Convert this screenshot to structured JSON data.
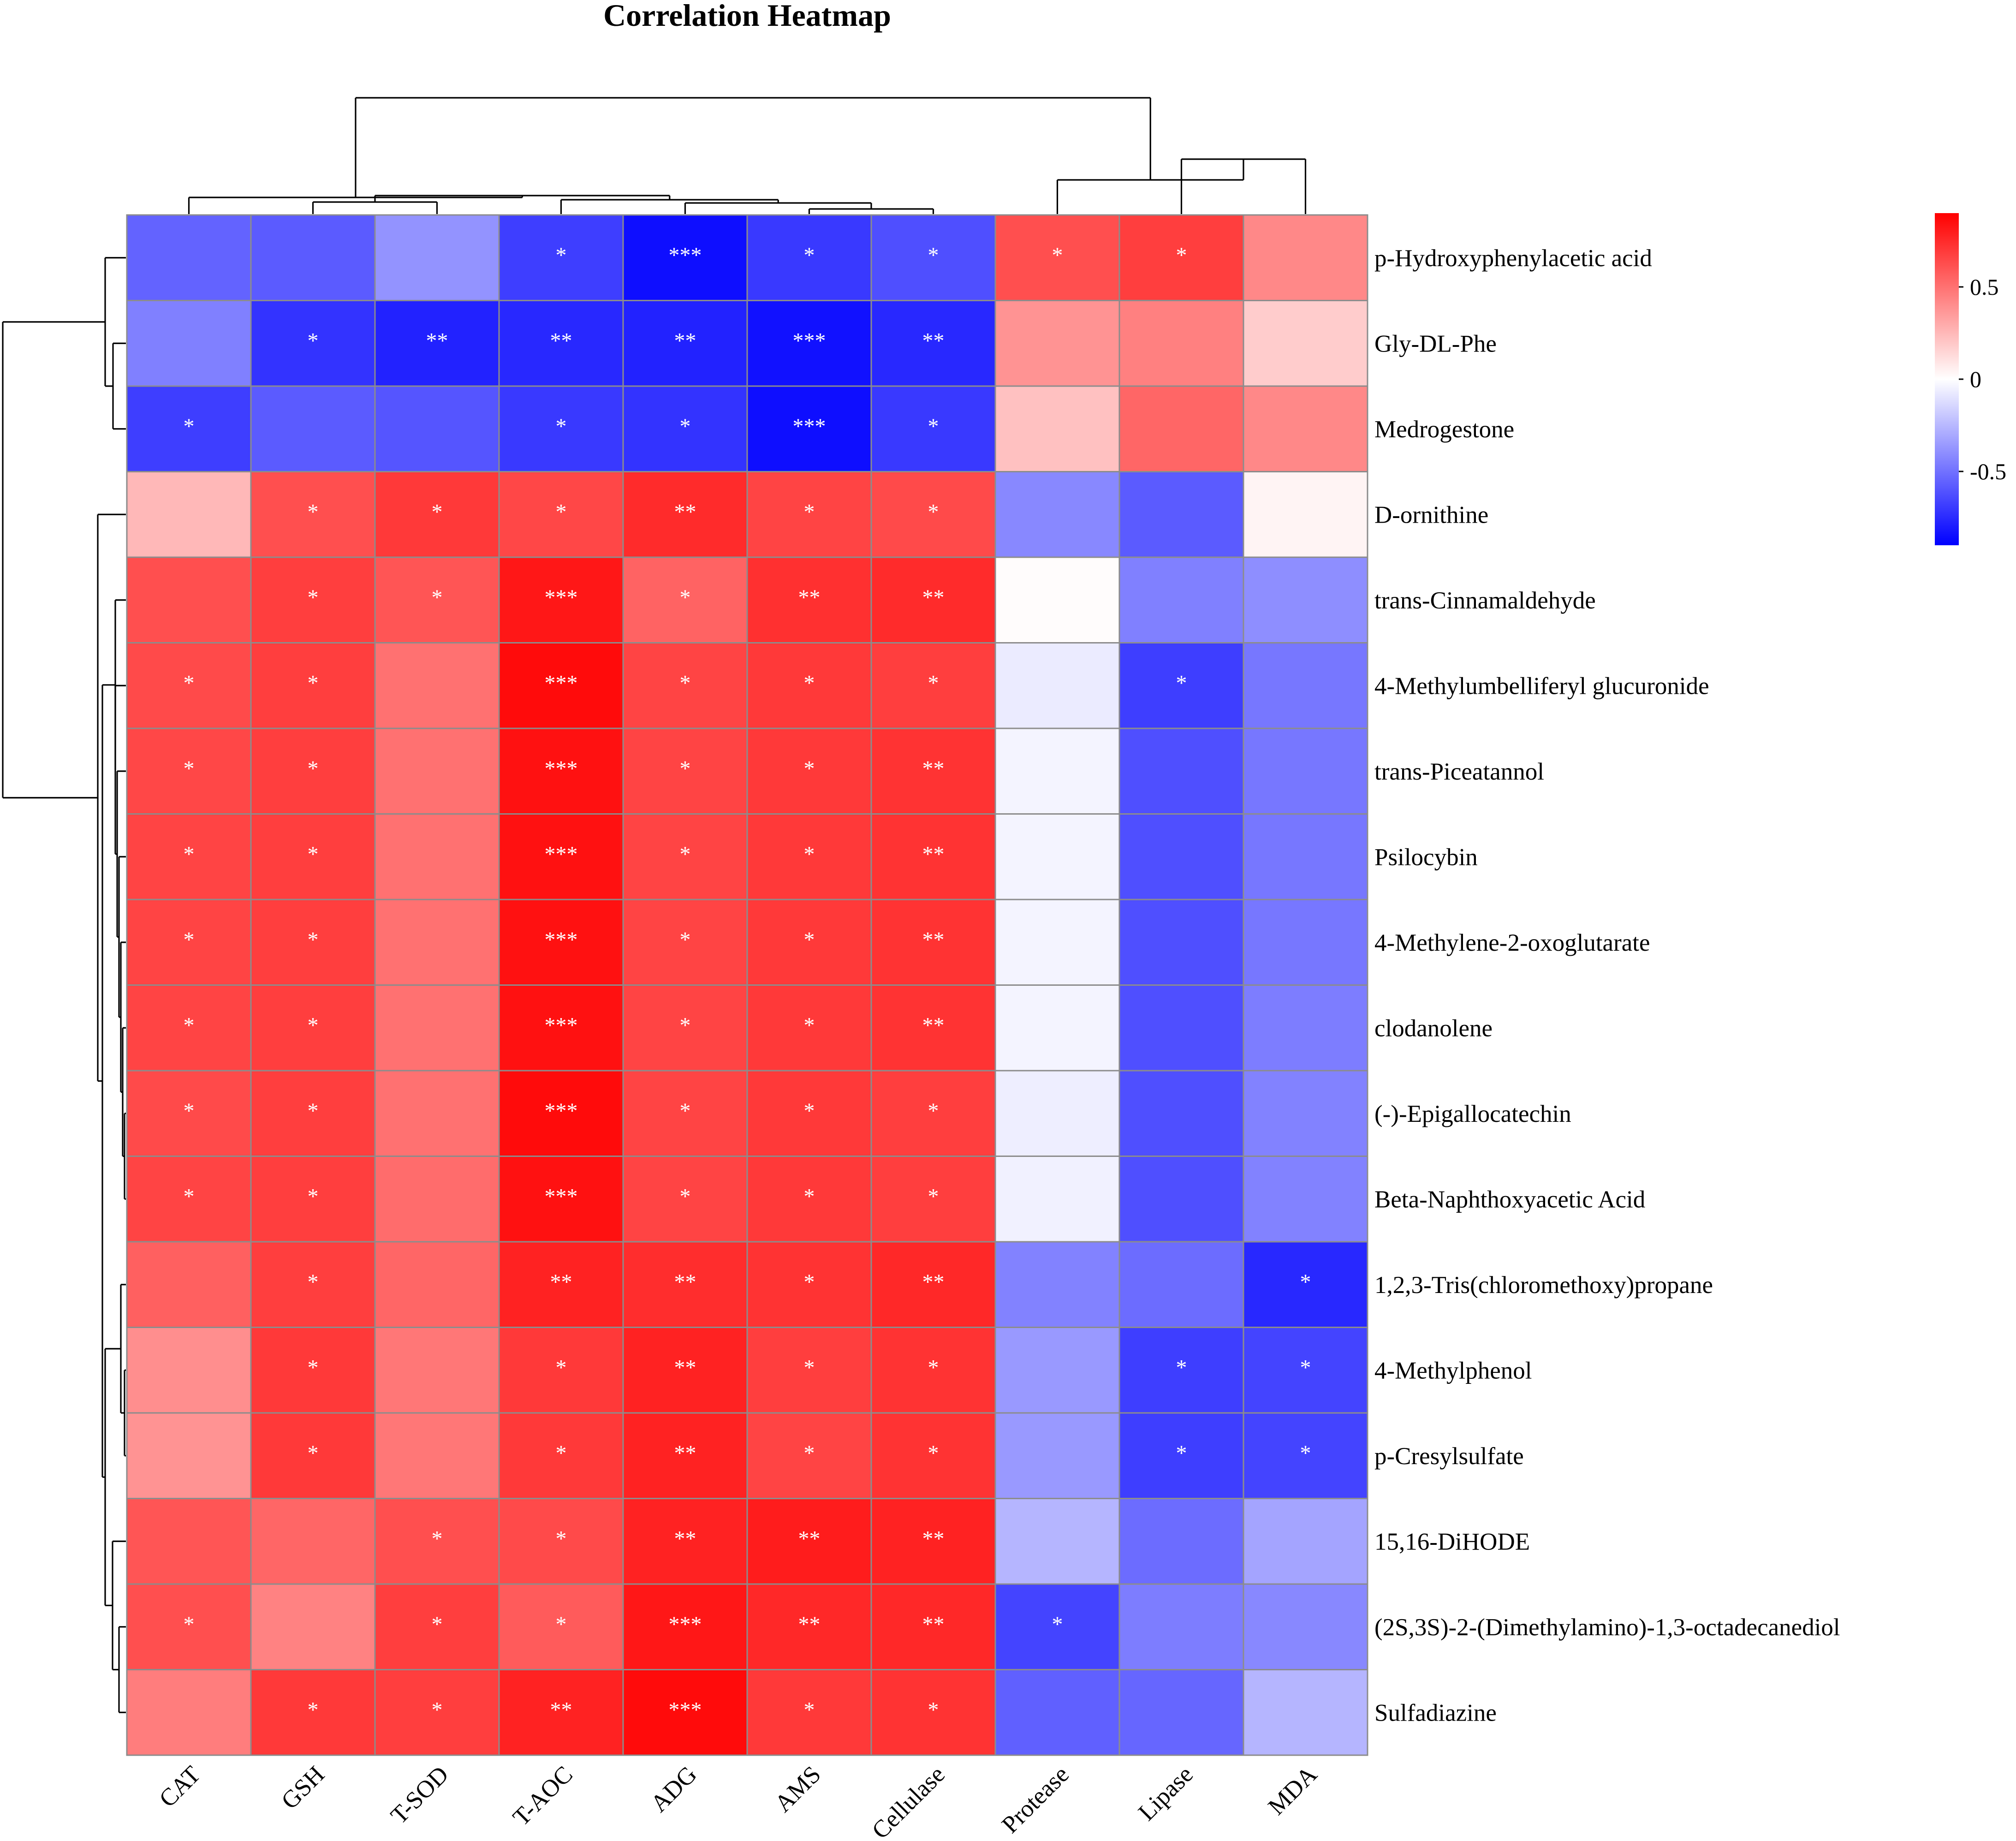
{
  "chart_data": {
    "type": "heatmap",
    "title": "Correlation Heatmap",
    "columns": [
      "CAT",
      "GSH",
      "T-SOD",
      "T-AOC",
      "ADG",
      "AMS",
      "Cellulase",
      "Protease",
      "Lipase",
      "MDA"
    ],
    "rows": [
      "p-Hydroxyphenylacetic acid",
      "Gly-DL-Phe",
      "Medrogestone",
      "D-ornithine",
      "trans-Cinnamaldehyde",
      "4-Methylumbelliferyl glucuronide",
      "trans-Piceatannol",
      "Psilocybin",
      "4-Methylene-2-oxoglutarate",
      "clodanolene",
      "(-)-Epigallocatechin",
      "Beta-Naphthoxyacetic Acid",
      "1,2,3-Tris(chloromethoxy)propane",
      "4-Methylphenol",
      "p-Cresylsulfate",
      "15,16-DiHODE",
      "(2S,3S)-2-(Dimethylamino)-1,3-octadecanediol",
      "Sulfadiazine"
    ],
    "values": [
      [
        -0.55,
        -0.58,
        -0.38,
        -0.68,
        -0.85,
        -0.7,
        -0.62,
        0.62,
        0.68,
        0.42
      ],
      [
        -0.45,
        -0.72,
        -0.78,
        -0.76,
        -0.78,
        -0.84,
        -0.76,
        0.38,
        0.45,
        0.18
      ],
      [
        -0.68,
        -0.58,
        -0.6,
        -0.7,
        -0.72,
        -0.85,
        -0.7,
        0.22,
        0.54,
        0.42
      ],
      [
        0.25,
        0.62,
        0.7,
        0.65,
        0.75,
        0.66,
        0.64,
        -0.42,
        -0.58,
        0.04
      ],
      [
        0.62,
        0.68,
        0.6,
        0.82,
        0.55,
        0.73,
        0.75,
        0.01,
        -0.45,
        -0.4
      ],
      [
        0.64,
        0.68,
        0.5,
        0.86,
        0.66,
        0.7,
        0.68,
        -0.07,
        -0.68,
        -0.48
      ],
      [
        0.65,
        0.68,
        0.5,
        0.84,
        0.66,
        0.7,
        0.72,
        -0.04,
        -0.62,
        -0.48
      ],
      [
        0.66,
        0.68,
        0.5,
        0.84,
        0.66,
        0.7,
        0.72,
        -0.04,
        -0.62,
        -0.48
      ],
      [
        0.66,
        0.68,
        0.5,
        0.84,
        0.66,
        0.7,
        0.72,
        -0.04,
        -0.62,
        -0.48
      ],
      [
        0.66,
        0.68,
        0.5,
        0.84,
        0.66,
        0.7,
        0.72,
        -0.04,
        -0.62,
        -0.46
      ],
      [
        0.64,
        0.68,
        0.5,
        0.86,
        0.66,
        0.7,
        0.68,
        -0.06,
        -0.62,
        -0.44
      ],
      [
        0.66,
        0.68,
        0.52,
        0.84,
        0.66,
        0.7,
        0.68,
        -0.05,
        -0.62,
        -0.44
      ],
      [
        0.56,
        0.68,
        0.54,
        0.78,
        0.74,
        0.72,
        0.76,
        -0.44,
        -0.52,
        -0.76
      ],
      [
        0.4,
        0.7,
        0.48,
        0.7,
        0.78,
        0.68,
        0.72,
        -0.36,
        -0.68,
        -0.66
      ],
      [
        0.38,
        0.7,
        0.48,
        0.7,
        0.78,
        0.66,
        0.72,
        -0.36,
        -0.68,
        -0.66
      ],
      [
        0.6,
        0.54,
        0.62,
        0.64,
        0.78,
        0.8,
        0.78,
        -0.26,
        -0.52,
        -0.32
      ],
      [
        0.62,
        0.44,
        0.68,
        0.58,
        0.82,
        0.76,
        0.76,
        -0.66,
        -0.46,
        -0.42
      ],
      [
        0.46,
        0.7,
        0.68,
        0.78,
        0.86,
        0.7,
        0.72,
        -0.56,
        -0.54,
        -0.26
      ]
    ],
    "significance": [
      [
        "",
        "",
        "",
        "*",
        "***",
        "*",
        "*",
        "*",
        "*",
        ""
      ],
      [
        "",
        "*",
        "**",
        "**",
        "**",
        "***",
        "**",
        "",
        "",
        ""
      ],
      [
        "*",
        "",
        "",
        "*",
        "*",
        "***",
        "*",
        "",
        "",
        ""
      ],
      [
        "",
        "*",
        "*",
        "*",
        "**",
        "*",
        "*",
        "",
        "",
        ""
      ],
      [
        "",
        "*",
        "*",
        "***",
        "*",
        "**",
        "**",
        "",
        "",
        ""
      ],
      [
        "*",
        "*",
        "",
        "***",
        "*",
        "*",
        "*",
        "",
        "*",
        ""
      ],
      [
        "*",
        "*",
        "",
        "***",
        "*",
        "*",
        "**",
        "",
        "",
        ""
      ],
      [
        "*",
        "*",
        "",
        "***",
        "*",
        "*",
        "**",
        "",
        "",
        ""
      ],
      [
        "*",
        "*",
        "",
        "***",
        "*",
        "*",
        "**",
        "",
        "",
        ""
      ],
      [
        "*",
        "*",
        "",
        "***",
        "*",
        "*",
        "**",
        "",
        "",
        ""
      ],
      [
        "*",
        "*",
        "",
        "***",
        "*",
        "*",
        "*",
        "",
        "",
        ""
      ],
      [
        "*",
        "*",
        "",
        "***",
        "*",
        "*",
        "*",
        "",
        "",
        ""
      ],
      [
        "",
        "*",
        "",
        "**",
        "**",
        "*",
        "**",
        "",
        "",
        "*"
      ],
      [
        "",
        "*",
        "",
        "*",
        "**",
        "*",
        "*",
        "",
        "*",
        "*"
      ],
      [
        "",
        "*",
        "",
        "*",
        "**",
        "*",
        "*",
        "",
        "*",
        "*"
      ],
      [
        "",
        "",
        "*",
        "*",
        "**",
        "**",
        "**",
        "",
        "",
        ""
      ],
      [
        "*",
        "",
        "*",
        "*",
        "***",
        "**",
        "**",
        "*",
        "",
        ""
      ],
      [
        "",
        "*",
        "*",
        "**",
        "***",
        "*",
        "*",
        "",
        "",
        ""
      ]
    ],
    "color_scale": {
      "low": "#0000ff",
      "mid": "#ffffff",
      "high": "#ff0000",
      "range": [
        -0.9,
        0.9
      ],
      "ticks": [
        {
          "value": 0.5,
          "label": "0.5"
        },
        {
          "value": 0,
          "label": "0"
        },
        {
          "value": -0.5,
          "label": "-0.5"
        }
      ]
    },
    "legend_position": "right",
    "cell_border_color": "#8c8c8c"
  }
}
